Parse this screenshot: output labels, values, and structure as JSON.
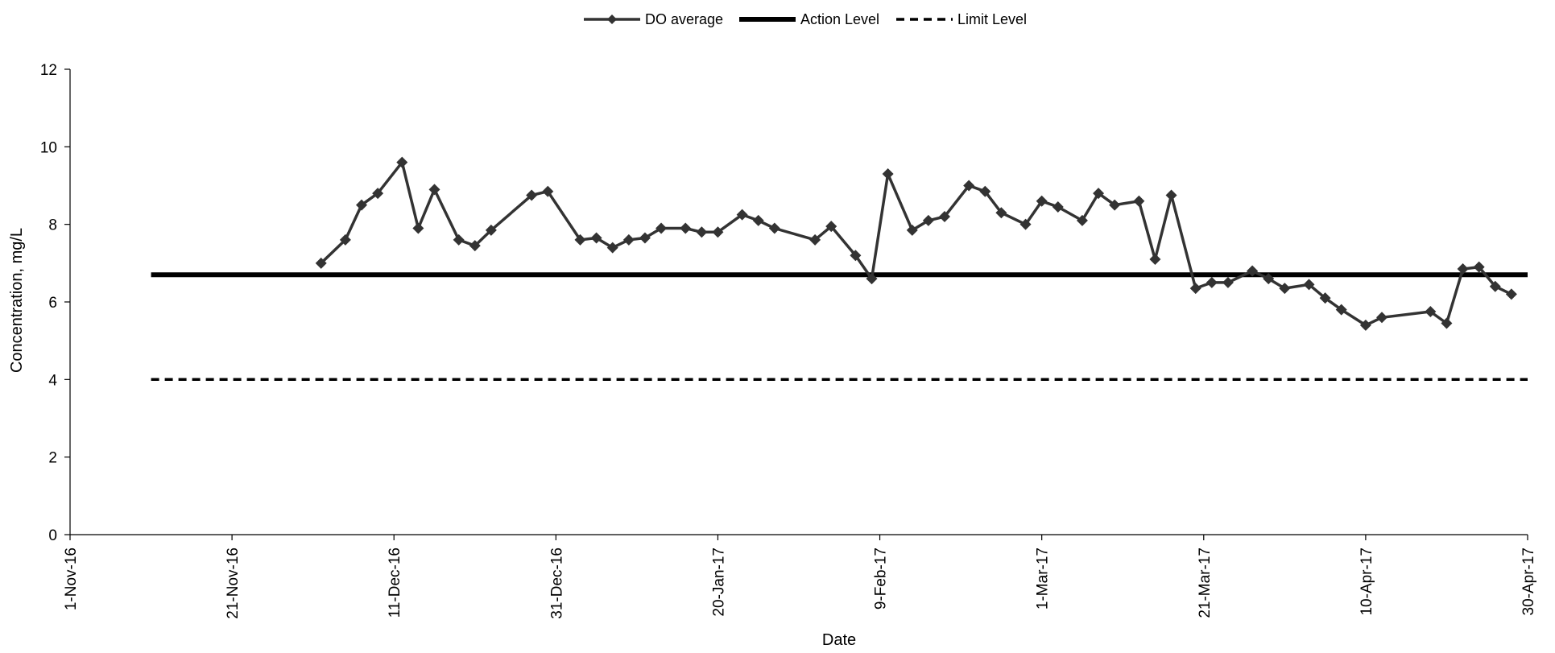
{
  "chart_data": {
    "type": "line",
    "title": "",
    "xlabel": "Date",
    "ylabel": "Concentration, mg/L",
    "x_ticks": [
      "1-Nov-16",
      "21-Nov-16",
      "11-Dec-16",
      "31-Dec-16",
      "20-Jan-17",
      "9-Feb-17",
      "1-Mar-17",
      "21-Mar-17",
      "10-Apr-17",
      "30-Apr-17"
    ],
    "xlim": [
      "2016-11-01",
      "2017-04-30"
    ],
    "y_ticks": [
      "0",
      "2",
      "4",
      "6",
      "8",
      "10",
      "12"
    ],
    "ylim": [
      0,
      12
    ],
    "grid": false,
    "legend_position": "top-center",
    "series": [
      {
        "name": "DO average",
        "style": "line-with-diamond-markers",
        "color": "#333333",
        "points": [
          [
            "2016-12-02",
            7.0
          ],
          [
            "2016-12-05",
            7.6
          ],
          [
            "2016-12-07",
            8.5
          ],
          [
            "2016-12-09",
            8.8
          ],
          [
            "2016-12-12",
            9.6
          ],
          [
            "2016-12-14",
            7.9
          ],
          [
            "2016-12-16",
            8.9
          ],
          [
            "2016-12-19",
            7.6
          ],
          [
            "2016-12-21",
            7.45
          ],
          [
            "2016-12-23",
            7.85
          ],
          [
            "2016-12-28",
            8.75
          ],
          [
            "2016-12-30",
            8.85
          ],
          [
            "2017-01-03",
            7.6
          ],
          [
            "2017-01-05",
            7.65
          ],
          [
            "2017-01-07",
            7.4
          ],
          [
            "2017-01-09",
            7.6
          ],
          [
            "2017-01-11",
            7.65
          ],
          [
            "2017-01-13",
            7.9
          ],
          [
            "2017-01-16",
            7.9
          ],
          [
            "2017-01-18",
            7.8
          ],
          [
            "2017-01-20",
            7.8
          ],
          [
            "2017-01-23",
            8.25
          ],
          [
            "2017-01-25",
            8.1
          ],
          [
            "2017-01-27",
            7.9
          ],
          [
            "2017-02-01",
            7.6
          ],
          [
            "2017-02-03",
            7.95
          ],
          [
            "2017-02-06",
            7.2
          ],
          [
            "2017-02-08",
            6.6
          ],
          [
            "2017-02-10",
            9.3
          ],
          [
            "2017-02-13",
            7.85
          ],
          [
            "2017-02-15",
            8.1
          ],
          [
            "2017-02-17",
            8.2
          ],
          [
            "2017-02-20",
            9.0
          ],
          [
            "2017-02-22",
            8.85
          ],
          [
            "2017-02-24",
            8.3
          ],
          [
            "2017-02-27",
            8.0
          ],
          [
            "2017-03-01",
            8.6
          ],
          [
            "2017-03-03",
            8.45
          ],
          [
            "2017-03-06",
            8.1
          ],
          [
            "2017-03-08",
            8.8
          ],
          [
            "2017-03-10",
            8.5
          ],
          [
            "2017-03-13",
            8.6
          ],
          [
            "2017-03-15",
            7.1
          ],
          [
            "2017-03-17",
            8.75
          ],
          [
            "2017-03-20",
            6.35
          ],
          [
            "2017-03-22",
            6.5
          ],
          [
            "2017-03-24",
            6.5
          ],
          [
            "2017-03-27",
            6.8
          ],
          [
            "2017-03-29",
            6.6
          ],
          [
            "2017-03-31",
            6.35
          ],
          [
            "2017-04-03",
            6.45
          ],
          [
            "2017-04-05",
            6.1
          ],
          [
            "2017-04-07",
            5.8
          ],
          [
            "2017-04-10",
            5.4
          ],
          [
            "2017-04-12",
            5.6
          ],
          [
            "2017-04-18",
            5.75
          ],
          [
            "2017-04-20",
            5.45
          ],
          [
            "2017-04-22",
            6.85
          ],
          [
            "2017-04-24",
            6.9
          ],
          [
            "2017-04-26",
            6.4
          ],
          [
            "2017-04-28",
            6.2
          ]
        ]
      },
      {
        "name": "Action Level",
        "style": "thick-solid",
        "color": "#000000",
        "points": [
          [
            "2016-11-11",
            6.7
          ],
          [
            "2017-04-30",
            6.7
          ]
        ]
      },
      {
        "name": "Limit Level",
        "style": "dashed",
        "color": "#000000",
        "points": [
          [
            "2016-11-11",
            4.0
          ],
          [
            "2017-04-30",
            4.0
          ]
        ]
      }
    ]
  }
}
